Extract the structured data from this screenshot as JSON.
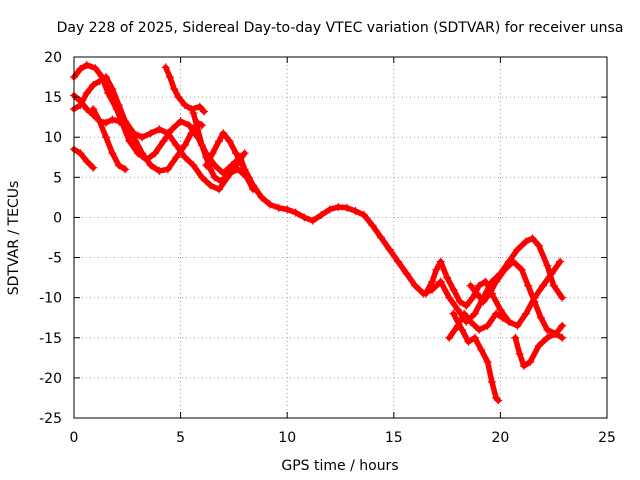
{
  "chart_data": {
    "type": "scatter",
    "title": "Day 228 of 2025, Sidereal Day-to-day VTEC variation (SDTVAR) for receiver unsa",
    "xlabel": "GPS time / hours",
    "ylabel": "SDTVAR / TECUs",
    "xlim": [
      0,
      25
    ],
    "ylim": [
      -25,
      20
    ],
    "xticks": [
      "0",
      "5",
      "10",
      "15",
      "20",
      "25"
    ],
    "yticks": [
      "20",
      "15",
      "10",
      "5",
      "0",
      "-5",
      "-10",
      "-15",
      "-20",
      "-25"
    ],
    "grid": true,
    "marker": "+",
    "color": "#ff0000",
    "series": [
      {
        "name": "trace-1",
        "points": [
          [
            0.0,
            17.5
          ],
          [
            0.3,
            18.5
          ],
          [
            0.6,
            19.0
          ],
          [
            1.0,
            18.6
          ],
          [
            1.3,
            17.6
          ],
          [
            1.6,
            15.5
          ],
          [
            2.0,
            13.5
          ],
          [
            2.3,
            11.5
          ],
          [
            2.6,
            9.5
          ],
          [
            3.0,
            8.0
          ],
          [
            3.4,
            7.2
          ],
          [
            3.8,
            8.0
          ],
          [
            4.2,
            9.5
          ],
          [
            4.6,
            11.0
          ],
          [
            5.0,
            12.0
          ],
          [
            5.4,
            11.5
          ],
          [
            5.8,
            10.0
          ],
          [
            6.2,
            8.0
          ],
          [
            6.6,
            6.5
          ],
          [
            7.0,
            5.5
          ],
          [
            7.4,
            6.5
          ],
          [
            7.8,
            7.5
          ],
          [
            8.0,
            6.0
          ],
          [
            8.4,
            4.0
          ],
          [
            8.8,
            2.5
          ],
          [
            9.2,
            1.6
          ],
          [
            9.6,
            1.2
          ],
          [
            10.0,
            1.0
          ],
          [
            10.4,
            0.6
          ],
          [
            10.8,
            0.0
          ],
          [
            11.2,
            -0.4
          ],
          [
            11.6,
            0.3
          ],
          [
            12.0,
            1.0
          ],
          [
            12.4,
            1.3
          ],
          [
            12.8,
            1.2
          ],
          [
            13.2,
            0.8
          ],
          [
            13.6,
            0.3
          ],
          [
            14.0,
            -1.0
          ],
          [
            14.4,
            -2.5
          ],
          [
            14.8,
            -4.0
          ],
          [
            15.2,
            -5.5
          ],
          [
            15.6,
            -7.0
          ],
          [
            16.0,
            -8.5
          ],
          [
            16.4,
            -9.5
          ],
          [
            16.8,
            -9.0
          ],
          [
            17.2,
            -8.0
          ],
          [
            17.6,
            -10.0
          ],
          [
            18.0,
            -11.5
          ],
          [
            18.4,
            -13.0
          ],
          [
            18.8,
            -12.0
          ],
          [
            19.2,
            -10.0
          ],
          [
            19.6,
            -8.0
          ],
          [
            20.0,
            -7.0
          ],
          [
            20.4,
            -5.5
          ],
          [
            20.8,
            -4.0
          ],
          [
            21.2,
            -3.0
          ],
          [
            21.5,
            -2.6
          ],
          [
            21.8,
            -3.5
          ],
          [
            22.2,
            -6.0
          ],
          [
            22.5,
            -8.5
          ],
          [
            22.9,
            -10.0
          ]
        ]
      },
      {
        "name": "trace-2",
        "points": [
          [
            0.0,
            13.5
          ],
          [
            0.3,
            14.0
          ],
          [
            0.6,
            15.5
          ],
          [
            0.9,
            16.5
          ],
          [
            1.2,
            17.0
          ],
          [
            1.5,
            17.5
          ],
          [
            1.8,
            16.0
          ],
          [
            2.1,
            14.0
          ],
          [
            2.4,
            12.0
          ],
          [
            2.8,
            10.5
          ],
          [
            3.2,
            10.0
          ],
          [
            3.6,
            10.5
          ],
          [
            4.0,
            11.0
          ],
          [
            4.4,
            10.5
          ],
          [
            4.8,
            9.0
          ],
          [
            5.2,
            7.5
          ],
          [
            5.6,
            6.5
          ],
          [
            6.0,
            5.0
          ],
          [
            6.4,
            4.0
          ],
          [
            6.8,
            3.5
          ],
          [
            7.2,
            5.0
          ],
          [
            7.6,
            6.5
          ],
          [
            8.0,
            8.0
          ]
        ]
      },
      {
        "name": "trace-3",
        "points": [
          [
            0.0,
            15.2
          ],
          [
            0.3,
            14.5
          ],
          [
            0.6,
            13.5
          ],
          [
            0.9,
            12.8
          ],
          [
            1.2,
            12.0
          ],
          [
            1.5,
            11.8
          ],
          [
            1.8,
            12.2
          ],
          [
            2.1,
            12.0
          ],
          [
            2.4,
            11.5
          ],
          [
            2.8,
            10.0
          ],
          [
            3.2,
            8.0
          ],
          [
            3.6,
            6.5
          ],
          [
            4.0,
            5.8
          ],
          [
            4.4,
            6.0
          ],
          [
            4.8,
            7.5
          ],
          [
            5.2,
            9.0
          ],
          [
            5.5,
            10.5
          ],
          [
            5.8,
            11.8
          ],
          [
            6.0,
            11.5
          ]
        ]
      },
      {
        "name": "trace-4",
        "points": [
          [
            0.0,
            8.5
          ],
          [
            0.3,
            8.0
          ],
          [
            0.6,
            7.0
          ],
          [
            0.9,
            6.2
          ]
        ]
      },
      {
        "name": "trace-5",
        "points": [
          [
            0.9,
            13.5
          ],
          [
            1.2,
            12.0
          ],
          [
            1.5,
            10.0
          ],
          [
            1.8,
            8.0
          ],
          [
            2.1,
            6.5
          ],
          [
            2.4,
            6.0
          ]
        ]
      },
      {
        "name": "trace-6",
        "points": [
          [
            4.3,
            18.7
          ],
          [
            4.5,
            17.5
          ],
          [
            4.7,
            16.0
          ],
          [
            4.9,
            15.0
          ],
          [
            5.2,
            14.0
          ],
          [
            5.5,
            13.5
          ],
          [
            5.9,
            13.8
          ],
          [
            6.1,
            13.2
          ]
        ]
      },
      {
        "name": "trace-7",
        "points": [
          [
            5.6,
            13.0
          ],
          [
            5.8,
            11.0
          ],
          [
            6.0,
            9.0
          ],
          [
            6.2,
            7.5
          ],
          [
            6.4,
            6.0
          ],
          [
            6.6,
            5.0
          ],
          [
            6.9,
            4.5
          ],
          [
            7.3,
            5.5
          ],
          [
            7.7,
            6.0
          ],
          [
            8.1,
            5.0
          ],
          [
            8.4,
            3.5
          ]
        ]
      },
      {
        "name": "trace-8",
        "points": [
          [
            6.2,
            6.5
          ],
          [
            6.5,
            8.0
          ],
          [
            6.8,
            9.5
          ],
          [
            7.0,
            10.5
          ],
          [
            7.3,
            9.5
          ],
          [
            7.6,
            8.0
          ],
          [
            7.9,
            6.5
          ],
          [
            8.2,
            5.0
          ],
          [
            8.5,
            3.5
          ]
        ]
      },
      {
        "name": "trace-9",
        "points": [
          [
            16.5,
            -9.5
          ],
          [
            16.8,
            -8.0
          ],
          [
            17.0,
            -6.5
          ],
          [
            17.2,
            -5.5
          ],
          [
            17.5,
            -7.5
          ],
          [
            17.8,
            -9.0
          ],
          [
            18.1,
            -10.5
          ],
          [
            18.4,
            -11.0
          ],
          [
            18.7,
            -10.0
          ],
          [
            19.0,
            -8.5
          ],
          [
            19.3,
            -8.0
          ],
          [
            19.6,
            -9.5
          ],
          [
            20.0,
            -11.5
          ],
          [
            20.4,
            -13.0
          ],
          [
            20.8,
            -13.5
          ],
          [
            21.2,
            -12.0
          ],
          [
            21.6,
            -10.0
          ],
          [
            22.0,
            -8.5
          ],
          [
            22.4,
            -7.0
          ],
          [
            22.8,
            -5.5
          ]
        ]
      },
      {
        "name": "trace-10",
        "points": [
          [
            17.8,
            -12.0
          ],
          [
            18.2,
            -14.0
          ],
          [
            18.5,
            -15.5
          ],
          [
            18.8,
            -15.0
          ],
          [
            19.1,
            -16.5
          ],
          [
            19.4,
            -18.0
          ],
          [
            19.6,
            -20.5
          ],
          [
            19.8,
            -22.5
          ],
          [
            19.9,
            -22.8
          ]
        ]
      },
      {
        "name": "trace-11",
        "points": [
          [
            17.6,
            -15.0
          ],
          [
            18.0,
            -13.5
          ],
          [
            18.3,
            -12.0
          ],
          [
            18.6,
            -13.0
          ],
          [
            19.0,
            -14.0
          ],
          [
            19.4,
            -13.5
          ],
          [
            19.8,
            -12.0
          ],
          [
            20.1,
            -12.5
          ],
          [
            20.4,
            -13.0
          ]
        ]
      },
      {
        "name": "trace-12",
        "points": [
          [
            18.6,
            -8.5
          ],
          [
            18.9,
            -9.5
          ],
          [
            19.2,
            -10.5
          ],
          [
            19.5,
            -9.5
          ],
          [
            19.8,
            -8.0
          ],
          [
            20.2,
            -6.5
          ],
          [
            20.6,
            -5.5
          ],
          [
            21.0,
            -6.5
          ],
          [
            21.3,
            -8.5
          ],
          [
            21.6,
            -10.5
          ],
          [
            21.9,
            -12.5
          ],
          [
            22.2,
            -14.0
          ],
          [
            22.6,
            -14.5
          ],
          [
            22.9,
            -15.0
          ]
        ]
      },
      {
        "name": "trace-13",
        "points": [
          [
            20.7,
            -15.0
          ],
          [
            20.9,
            -17.0
          ],
          [
            21.1,
            -18.5
          ],
          [
            21.4,
            -18.0
          ],
          [
            21.8,
            -16.0
          ],
          [
            22.2,
            -15.0
          ],
          [
            22.6,
            -14.5
          ],
          [
            22.9,
            -13.5
          ]
        ]
      }
    ]
  }
}
